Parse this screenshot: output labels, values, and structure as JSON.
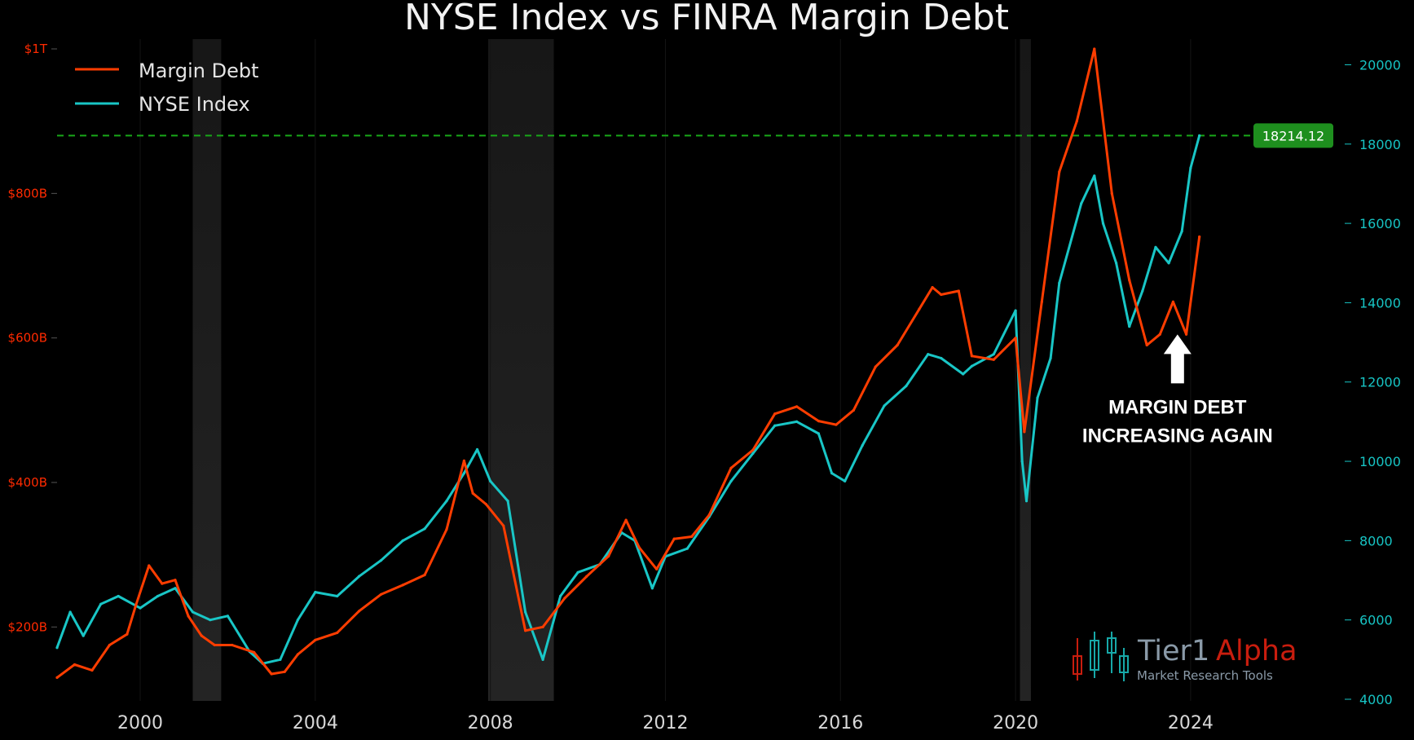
{
  "chart_data": {
    "type": "line",
    "title": "NYSE Index vs FINRA Margin Debt",
    "x_ticks": [
      "2000",
      "2004",
      "2008",
      "2012",
      "2016",
      "2020",
      "2024"
    ],
    "x_tick_values": [
      2000,
      2004,
      2008,
      2012,
      2016,
      2020,
      2024
    ],
    "xlim": [
      1998.1,
      2025.1
    ],
    "left_axis": {
      "ticks": [
        "$200B",
        "$400B",
        "$600B",
        "$800B",
        "$1T"
      ],
      "tick_values": [
        200,
        400,
        600,
        800,
        1000
      ],
      "ylim": [
        100,
        1000
      ],
      "units": "billions USD",
      "color": "#ff2a00"
    },
    "right_axis": {
      "ticks": [
        "4000",
        "6000",
        "8000",
        "10000",
        "12000",
        "14000",
        "16000",
        "18000",
        "20000"
      ],
      "tick_values": [
        4000,
        6000,
        8000,
        10000,
        12000,
        14000,
        16000,
        18000,
        20000
      ],
      "ylim": [
        4000,
        20400
      ],
      "color": "#17c4c4"
    },
    "legend": {
      "position": "top-left",
      "entries": [
        "Margin Debt",
        "NYSE Index"
      ]
    },
    "series": [
      {
        "name": "Margin Debt",
        "axis": "left",
        "color": "#ff3d00",
        "x": [
          1998.1,
          1998.5,
          1998.9,
          1999.3,
          1999.7,
          1999.9,
          2000.2,
          2000.5,
          2000.8,
          2001.1,
          2001.4,
          2001.7,
          2002.1,
          2002.6,
          2003.0,
          2003.3,
          2003.6,
          2004.0,
          2004.5,
          2005.0,
          2005.5,
          2006.0,
          2006.5,
          2007.0,
          2007.4,
          2007.6,
          2007.9,
          2008.3,
          2008.8,
          2009.2,
          2009.7,
          2010.2,
          2010.7,
          2011.1,
          2011.4,
          2011.8,
          2012.2,
          2012.6,
          2013.0,
          2013.5,
          2014.0,
          2014.5,
          2015.0,
          2015.5,
          2015.9,
          2016.3,
          2016.8,
          2017.3,
          2017.8,
          2018.1,
          2018.3,
          2018.7,
          2019.0,
          2019.5,
          2020.0,
          2020.2,
          2020.6,
          2021.0,
          2021.4,
          2021.8,
          2022.2,
          2022.6,
          2023.0,
          2023.3,
          2023.6,
          2023.9,
          2024.2
        ],
        "values": [
          130,
          148,
          140,
          175,
          190,
          230,
          285,
          260,
          265,
          215,
          188,
          175,
          175,
          165,
          135,
          138,
          162,
          182,
          192,
          222,
          245,
          258,
          272,
          335,
          430,
          385,
          370,
          340,
          195,
          200,
          240,
          270,
          298,
          348,
          310,
          280,
          322,
          325,
          355,
          420,
          445,
          495,
          505,
          485,
          480,
          500,
          560,
          590,
          640,
          670,
          660,
          665,
          575,
          570,
          600,
          470,
          650,
          830,
          900,
          1000,
          800,
          680,
          590,
          605,
          650,
          605,
          740
        ]
      },
      {
        "name": "NYSE Index",
        "axis": "right",
        "color": "#19c6c6",
        "x": [
          1998.1,
          1998.4,
          1998.7,
          1999.1,
          1999.5,
          2000.0,
          2000.4,
          2000.8,
          2001.2,
          2001.6,
          2002.0,
          2002.5,
          2002.8,
          2003.2,
          2003.6,
          2004.0,
          2004.5,
          2005.0,
          2005.5,
          2006.0,
          2006.5,
          2007.0,
          2007.4,
          2007.7,
          2008.0,
          2008.4,
          2008.8,
          2009.2,
          2009.6,
          2010.0,
          2010.5,
          2011.0,
          2011.3,
          2011.7,
          2012.0,
          2012.5,
          2013.0,
          2013.5,
          2014.0,
          2014.5,
          2015.0,
          2015.5,
          2015.8,
          2016.1,
          2016.5,
          2017.0,
          2017.5,
          2018.0,
          2018.3,
          2018.8,
          2019.0,
          2019.5,
          2020.0,
          2020.15,
          2020.25,
          2020.5,
          2020.8,
          2021.0,
          2021.5,
          2021.8,
          2022.0,
          2022.3,
          2022.6,
          2022.9,
          2023.2,
          2023.5,
          2023.8,
          2024.0,
          2024.2
        ],
        "values": [
          5300,
          6200,
          5600,
          6400,
          6600,
          6300,
          6600,
          6800,
          6200,
          6000,
          6100,
          5200,
          4900,
          5000,
          6000,
          6700,
          6600,
          7100,
          7500,
          8000,
          8300,
          9000,
          9700,
          10300,
          9500,
          9000,
          6200,
          5000,
          6600,
          7200,
          7400,
          8200,
          8000,
          6800,
          7600,
          7800,
          8600,
          9500,
          10200,
          10900,
          11000,
          10700,
          9700,
          9500,
          10400,
          11400,
          11900,
          12700,
          12600,
          12200,
          12400,
          12700,
          13800,
          10000,
          9000,
          11600,
          12600,
          14500,
          16500,
          17200,
          16000,
          15000,
          13400,
          14300,
          15400,
          15000,
          15800,
          17400,
          18214
        ]
      }
    ],
    "recession_bands": [
      [
        2001.2,
        2001.85
      ],
      [
        2007.95,
        2009.45
      ],
      [
        2020.1,
        2020.35
      ]
    ],
    "reference_line": {
      "value": 18214.12,
      "axis": "right",
      "style": "dashed",
      "color": "#18a818"
    },
    "last_value_label": "18214.12",
    "annotation": {
      "lines": [
        "MARGIN DEBT",
        "INCREASING AGAIN"
      ],
      "arrow": "up",
      "x": 2023.7,
      "y": 13200
    }
  },
  "branding": {
    "name_part1": "Tier1",
    "name_part2": "Alpha",
    "tagline": "Market Research Tools",
    "icon": "candlestick-logo-icon"
  },
  "colors": {
    "background": "#000000",
    "margin_debt": "#ff3d00",
    "nyse": "#19c6c6",
    "badge": "#1e8f1e"
  }
}
